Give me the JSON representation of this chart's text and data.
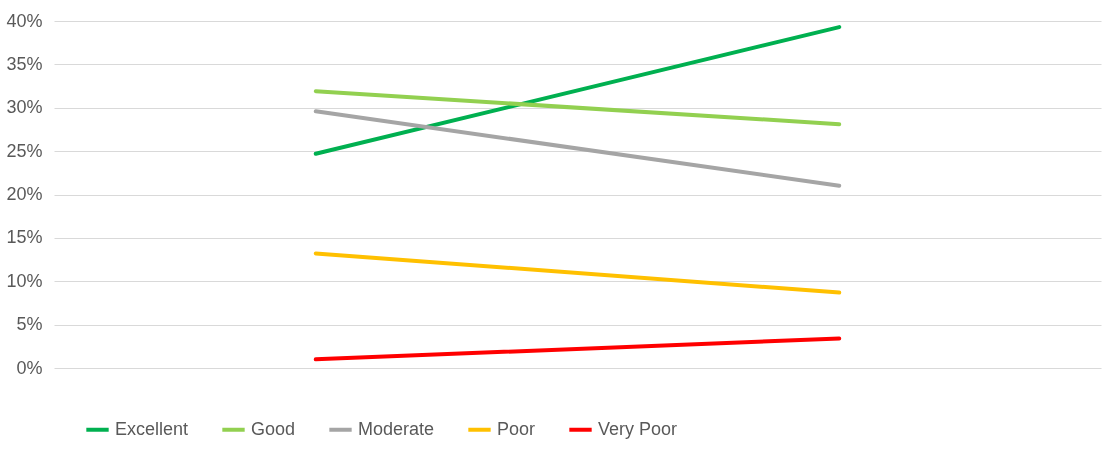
{
  "chart_data": {
    "type": "line",
    "categories": [
      null,
      null
    ],
    "series": [
      {
        "name": "Excellent",
        "color": "#00b050",
        "values": [
          24.7,
          39.3
        ]
      },
      {
        "name": "Good",
        "color": "#92d050",
        "values": [
          31.9,
          28.1
        ]
      },
      {
        "name": "Moderate",
        "color": "#a5a5a5",
        "values": [
          29.6,
          21.0
        ]
      },
      {
        "name": "Poor",
        "color": "#ffc000",
        "values": [
          13.2,
          8.7
        ]
      },
      {
        "name": "Very Poor",
        "color": "#ff0000",
        "values": [
          1.0,
          3.4
        ]
      }
    ],
    "ylim": [
      0,
      40
    ],
    "yticks": [
      {
        "value": 0,
        "label": "0%"
      },
      {
        "value": 5,
        "label": "5%"
      },
      {
        "value": 10,
        "label": "10%"
      },
      {
        "value": 15,
        "label": "15%"
      },
      {
        "value": 20,
        "label": "20%"
      },
      {
        "value": 25,
        "label": "25%"
      },
      {
        "value": 30,
        "label": "30%"
      },
      {
        "value": 35,
        "label": "35%"
      },
      {
        "value": 40,
        "label": "40%"
      }
    ],
    "grid": "y",
    "legend": "bottom",
    "marker": "none",
    "line_style": "solid",
    "tick_labels": "y"
  }
}
